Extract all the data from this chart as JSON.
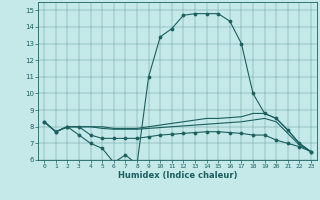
{
  "xlabel": "Humidex (Indice chaleur)",
  "bg_color": "#c5e8e8",
  "line_color": "#1a6060",
  "xlim": [
    -0.5,
    23.5
  ],
  "ylim": [
    6,
    15.5
  ],
  "xticks": [
    0,
    1,
    2,
    3,
    4,
    5,
    6,
    7,
    8,
    9,
    10,
    11,
    12,
    13,
    14,
    15,
    16,
    17,
    18,
    19,
    20,
    21,
    22,
    23
  ],
  "yticks": [
    6,
    7,
    8,
    9,
    10,
    11,
    12,
    13,
    14,
    15
  ],
  "line1_x": [
    0,
    1,
    2,
    3,
    4,
    5,
    6,
    7,
    8,
    9,
    10,
    11,
    12,
    13,
    14,
    15,
    16,
    17,
    18,
    19,
    20,
    21,
    22,
    23
  ],
  "line1_y": [
    8.3,
    7.7,
    8.0,
    7.5,
    7.0,
    6.7,
    5.85,
    6.3,
    5.75,
    11.0,
    13.4,
    13.9,
    14.7,
    14.8,
    14.8,
    14.8,
    14.35,
    13.0,
    10.0,
    8.8,
    8.5,
    7.8,
    7.0,
    6.5
  ],
  "line2_x": [
    0,
    1,
    2,
    3,
    4,
    5,
    6,
    7,
    8,
    9,
    10,
    11,
    12,
    13,
    14,
    15,
    16,
    17,
    18,
    19,
    20,
    21,
    22,
    23
  ],
  "line2_y": [
    8.3,
    7.7,
    8.0,
    8.0,
    8.0,
    8.0,
    7.9,
    7.9,
    7.9,
    8.0,
    8.1,
    8.2,
    8.3,
    8.4,
    8.5,
    8.5,
    8.55,
    8.6,
    8.8,
    8.8,
    8.5,
    7.8,
    7.0,
    6.5
  ],
  "line3_x": [
    0,
    1,
    2,
    3,
    4,
    5,
    6,
    7,
    8,
    9,
    10,
    11,
    12,
    13,
    14,
    15,
    16,
    17,
    18,
    19,
    20,
    21,
    22,
    23
  ],
  "line3_y": [
    8.3,
    7.7,
    8.0,
    8.0,
    8.0,
    7.9,
    7.85,
    7.85,
    7.85,
    7.9,
    7.95,
    8.0,
    8.05,
    8.1,
    8.15,
    8.2,
    8.25,
    8.3,
    8.4,
    8.5,
    8.3,
    7.6,
    6.9,
    6.5
  ],
  "line4_x": [
    0,
    1,
    2,
    3,
    4,
    5,
    6,
    7,
    8,
    9,
    10,
    11,
    12,
    13,
    14,
    15,
    16,
    17,
    18,
    19,
    20,
    21,
    22,
    23
  ],
  "line4_y": [
    8.3,
    7.7,
    8.0,
    8.0,
    7.5,
    7.3,
    7.3,
    7.3,
    7.3,
    7.4,
    7.5,
    7.55,
    7.6,
    7.65,
    7.7,
    7.7,
    7.65,
    7.6,
    7.5,
    7.5,
    7.2,
    7.0,
    6.8,
    6.5
  ]
}
